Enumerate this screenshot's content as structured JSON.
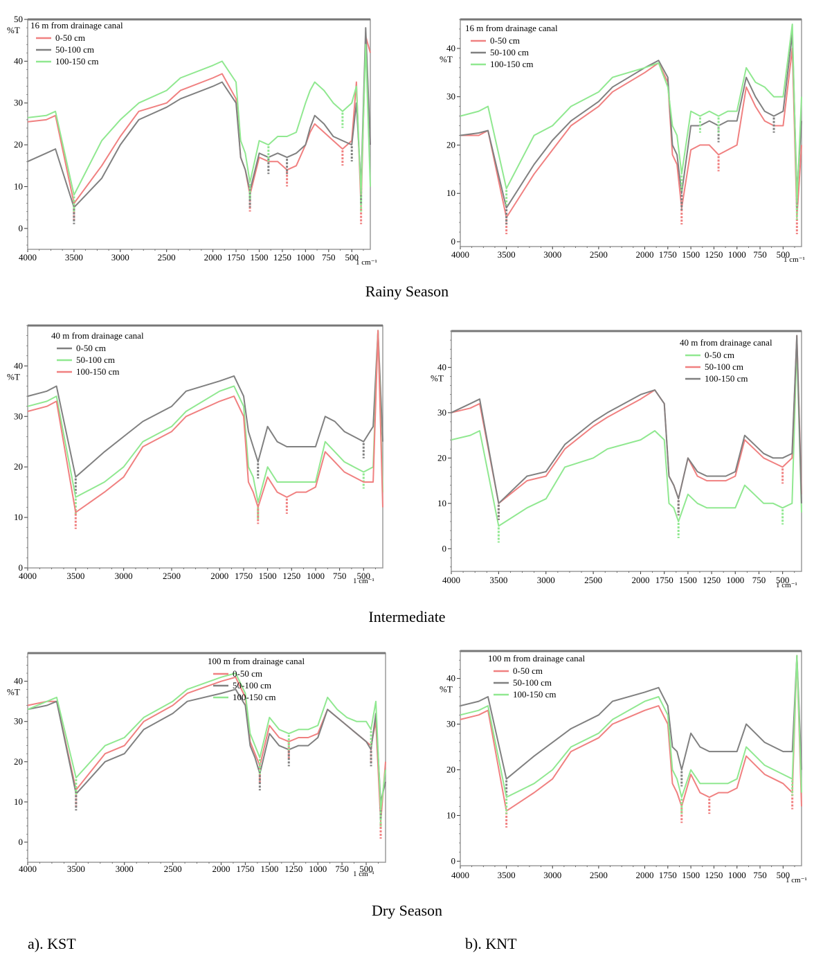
{
  "page": {
    "season_captions": [
      "Rainy Season",
      "Intermediate",
      "Dry Season"
    ],
    "footer_left": "a). KST",
    "footer_right": "b). KNT"
  },
  "colors": {
    "pink": "#f08080",
    "gray": "#808080",
    "green": "#90e890",
    "darkred": "#a52a2a"
  },
  "chart_data": [
    {
      "type": "line",
      "title": "16 m from drainage canal",
      "ylabel": "%T",
      "xlabel": "1 cm-1",
      "xlim": [
        4000,
        300
      ],
      "ylim": [
        -5,
        50
      ],
      "xticks": [
        4000,
        3500,
        3000,
        2500,
        2000,
        1750,
        1500,
        1250,
        1000,
        750,
        500
      ],
      "yticks": [
        0,
        10,
        20,
        30,
        40,
        50
      ],
      "legend_position": "top-left",
      "x": [
        4000,
        3800,
        3700,
        3500,
        3200,
        3000,
        2800,
        2500,
        2350,
        2000,
        1900,
        1750,
        1700,
        1650,
        1600,
        1500,
        1400,
        1300,
        1200,
        1100,
        1000,
        950,
        900,
        800,
        700,
        600,
        500,
        450,
        400,
        350,
        300
      ],
      "series": [
        {
          "name": "0-50 cm",
          "color": "pink",
          "values": [
            25.5,
            26,
            27,
            6,
            15,
            22,
            28,
            30,
            33,
            36,
            37,
            31,
            17,
            14,
            8,
            17,
            16,
            16,
            14,
            15,
            20,
            23,
            25,
            23,
            21,
            19,
            21,
            35,
            5,
            46,
            42
          ]
        },
        {
          "name": "50-100 cm",
          "color": "gray",
          "values": [
            16,
            18,
            19,
            5,
            12,
            20,
            26,
            29,
            31,
            34,
            35,
            30,
            17,
            14,
            9,
            18,
            17,
            18,
            17,
            18,
            20,
            24,
            27,
            25,
            22,
            21,
            20,
            30,
            10,
            48,
            20
          ]
        },
        {
          "name": "100-150 cm",
          "color": "green",
          "values": [
            26.5,
            27,
            28,
            8,
            21,
            26,
            30,
            33,
            36,
            39,
            40,
            35,
            21,
            18,
            11,
            21,
            20,
            22,
            22,
            23,
            30,
            33,
            35,
            33,
            30,
            28,
            30,
            34,
            8,
            44,
            10
          ]
        }
      ]
    },
    {
      "type": "line",
      "title": "16 m from drainage canal",
      "ylabel": "%T",
      "xlabel": "1 cm-1",
      "xlim": [
        4000,
        300
      ],
      "ylim": [
        -1,
        46
      ],
      "xticks": [
        4000,
        3500,
        3000,
        2500,
        2000,
        1750,
        1500,
        1250,
        1000,
        750,
        500
      ],
      "yticks": [
        0,
        10,
        20,
        30,
        40
      ],
      "legend_position": "top-left",
      "x": [
        4000,
        3800,
        3700,
        3500,
        3200,
        3000,
        2800,
        2500,
        2350,
        2000,
        1850,
        1750,
        1700,
        1650,
        1600,
        1500,
        1400,
        1300,
        1200,
        1100,
        1000,
        900,
        800,
        700,
        600,
        500,
        400,
        350,
        300
      ],
      "series": [
        {
          "name": "0-50 cm",
          "color": "pink",
          "values": [
            22,
            22,
            23,
            5,
            14,
            19,
            24,
            28,
            31,
            35,
            37,
            33,
            18,
            16,
            7,
            19,
            20,
            20,
            18,
            19,
            20,
            32,
            28,
            25,
            24,
            24,
            40,
            5,
            20
          ]
        },
        {
          "name": "50-100 cm",
          "color": "gray",
          "values": [
            22,
            22.5,
            23,
            7,
            16,
            21,
            25,
            29,
            32,
            36,
            37.5,
            34,
            20,
            18,
            10,
            24,
            24,
            25,
            24,
            25,
            25,
            34,
            30,
            27,
            26,
            27,
            43,
            10,
            25
          ]
        },
        {
          "name": "100-150 cm",
          "color": "green",
          "values": [
            26,
            27,
            28,
            11,
            22,
            24,
            28,
            31,
            34,
            36,
            37,
            32,
            24,
            22,
            14,
            27,
            26,
            27,
            26,
            27,
            27,
            36,
            33,
            32,
            30,
            30,
            45,
            8,
            30
          ]
        }
      ]
    },
    {
      "type": "line",
      "title": "40 m from drainage canal",
      "ylabel": "%T",
      "xlabel": "1 cm-1",
      "xlim": [
        4000,
        300
      ],
      "ylim": [
        0,
        48
      ],
      "xticks": [
        4000,
        3500,
        3000,
        2500,
        2000,
        1750,
        1500,
        1250,
        1000,
        750,
        500
      ],
      "yticks": [
        0,
        10,
        20,
        30,
        40
      ],
      "legend_position": "top-left",
      "x": [
        4000,
        3800,
        3700,
        3500,
        3200,
        3000,
        2800,
        2500,
        2350,
        2000,
        1850,
        1750,
        1700,
        1650,
        1600,
        1500,
        1400,
        1300,
        1200,
        1100,
        1000,
        900,
        800,
        700,
        600,
        500,
        400,
        350,
        300
      ],
      "series": [
        {
          "name": "0-50 cm",
          "color": "gray",
          "values": [
            34,
            35,
            36,
            18,
            23,
            26,
            29,
            32,
            35,
            37,
            38,
            34,
            27,
            24,
            21,
            28,
            25,
            24,
            24,
            24,
            24,
            30,
            29,
            27,
            26,
            25,
            28,
            47,
            25
          ]
        },
        {
          "name": "50-100 cm",
          "color": "green",
          "values": [
            32,
            33,
            34,
            14,
            17,
            20,
            25,
            28,
            31,
            35,
            36,
            32,
            20,
            18,
            13,
            20,
            17,
            17,
            17,
            17,
            17,
            25,
            23,
            21,
            20,
            19,
            20,
            47,
            15
          ]
        },
        {
          "name": "100-150 cm",
          "color": "pink",
          "values": [
            31,
            32,
            33,
            11,
            15,
            18,
            24,
            27,
            30,
            33,
            34,
            30,
            17,
            15,
            12,
            18,
            15,
            14,
            15,
            15,
            16,
            23,
            21,
            19,
            18,
            17,
            17,
            47,
            12
          ]
        }
      ]
    },
    {
      "type": "line",
      "title": "40 m from drainage canal",
      "ylabel": "%T",
      "xlabel": "1 cm-1",
      "xlim": [
        4000,
        300
      ],
      "ylim": [
        -5,
        48
      ],
      "xticks": [
        4000,
        3500,
        3000,
        2500,
        2000,
        1750,
        1500,
        1250,
        1000,
        750,
        500
      ],
      "yticks": [
        0,
        10,
        20,
        30,
        40
      ],
      "legend_position": "top-right",
      "x": [
        4000,
        3800,
        3700,
        3500,
        3200,
        3000,
        2800,
        2500,
        2350,
        2000,
        1850,
        1750,
        1700,
        1650,
        1600,
        1500,
        1400,
        1300,
        1200,
        1100,
        1000,
        900,
        800,
        700,
        600,
        500,
        400,
        350,
        300
      ],
      "series": [
        {
          "name": "0-50 cm",
          "color": "green",
          "values": [
            24,
            25,
            26,
            5,
            9,
            11,
            18,
            20,
            22,
            24,
            26,
            24,
            10,
            9,
            6,
            12,
            10,
            9,
            9,
            9,
            9,
            14,
            12,
            10,
            10,
            9,
            10,
            45,
            8
          ]
        },
        {
          "name": "50-100 cm",
          "color": "pink",
          "values": [
            30,
            31,
            32,
            10,
            15,
            16,
            22,
            27,
            29,
            33,
            35,
            32,
            16,
            14,
            11,
            20,
            16,
            15,
            15,
            15,
            16,
            24,
            22,
            20,
            19,
            18,
            20,
            47,
            12
          ]
        },
        {
          "name": "100-150 cm",
          "color": "gray",
          "values": [
            30,
            32,
            33,
            10,
            16,
            17,
            23,
            28,
            30,
            34,
            35,
            32,
            16,
            14,
            11,
            20,
            17,
            16,
            16,
            16,
            17,
            25,
            23,
            21,
            20,
            20,
            21,
            47,
            10
          ]
        }
      ]
    },
    {
      "type": "line",
      "title": "100 m from drainage canal",
      "ylabel": "%T",
      "xlabel": "1 cm-1",
      "xlim": [
        4000,
        300
      ],
      "ylim": [
        -5,
        47
      ],
      "xticks": [
        4000,
        3500,
        3000,
        2500,
        2000,
        1750,
        1500,
        1250,
        1000,
        750,
        500
      ],
      "yticks": [
        0,
        10,
        20,
        30,
        40
      ],
      "legend_position": "top-right",
      "x": [
        4000,
        3800,
        3700,
        3500,
        3200,
        3000,
        2800,
        2500,
        2350,
        2000,
        1850,
        1750,
        1700,
        1650,
        1600,
        1500,
        1400,
        1300,
        1200,
        1100,
        1000,
        900,
        800,
        700,
        600,
        500,
        450,
        400,
        350,
        300
      ],
      "series": [
        {
          "name": "0-50 cm",
          "color": "pink",
          "values": [
            34,
            35,
            35,
            13,
            22,
            24,
            30,
            34,
            37,
            40,
            41,
            36,
            25,
            22,
            19,
            29,
            26,
            25,
            26,
            26,
            27,
            33,
            31,
            29,
            27,
            25,
            24,
            30,
            5,
            20
          ]
        },
        {
          "name": "50-100 cm",
          "color": "gray",
          "values": [
            33,
            34,
            35,
            12,
            20,
            22,
            28,
            32,
            35,
            37,
            38,
            34,
            24,
            21,
            17,
            27,
            24,
            23,
            24,
            24,
            26,
            33,
            31,
            29,
            27,
            25,
            23,
            32,
            10,
            15
          ]
        },
        {
          "name": "100-150 cm",
          "color": "green",
          "values": [
            33,
            35,
            36,
            16,
            24,
            26,
            31,
            35,
            38,
            41,
            42,
            37,
            27,
            24,
            21,
            31,
            28,
            27,
            28,
            28,
            29,
            36,
            33,
            31,
            30,
            30,
            28,
            35,
            8,
            18
          ]
        }
      ]
    },
    {
      "type": "line",
      "title": "100 m from drainage canal",
      "ylabel": "%T",
      "xlabel": "1 cm-1",
      "xlim": [
        4000,
        300
      ],
      "ylim": [
        -1,
        46
      ],
      "xticks": [
        4000,
        3500,
        3000,
        2500,
        2000,
        1750,
        1500,
        1250,
        1000,
        750,
        500
      ],
      "yticks": [
        0,
        10,
        20,
        30,
        40
      ],
      "legend_position": "top-left",
      "x": [
        4000,
        3800,
        3700,
        3500,
        3200,
        3000,
        2800,
        2500,
        2350,
        2000,
        1850,
        1750,
        1700,
        1650,
        1600,
        1500,
        1400,
        1300,
        1200,
        1100,
        1000,
        900,
        800,
        700,
        600,
        500,
        400,
        350,
        300
      ],
      "series": [
        {
          "name": "0-50 cm",
          "color": "pink",
          "values": [
            31,
            32,
            33,
            11,
            15,
            18,
            24,
            27,
            30,
            33,
            34,
            30,
            17,
            15,
            12,
            19,
            15,
            14,
            15,
            15,
            16,
            23,
            21,
            19,
            18,
            17,
            15,
            45,
            12
          ]
        },
        {
          "name": "50-100 cm",
          "color": "gray",
          "values": [
            34,
            35,
            36,
            18,
            23,
            26,
            29,
            32,
            35,
            37,
            38,
            34,
            25,
            24,
            20,
            28,
            25,
            24,
            24,
            24,
            24,
            30,
            28,
            26,
            25,
            24,
            24,
            45,
            20
          ]
        },
        {
          "name": "100-150 cm",
          "color": "green",
          "values": [
            32,
            33,
            34,
            14,
            17,
            20,
            25,
            28,
            31,
            35,
            36,
            32,
            20,
            18,
            14,
            20,
            17,
            17,
            17,
            17,
            18,
            25,
            23,
            21,
            20,
            19,
            18,
            45,
            15
          ]
        }
      ]
    }
  ]
}
